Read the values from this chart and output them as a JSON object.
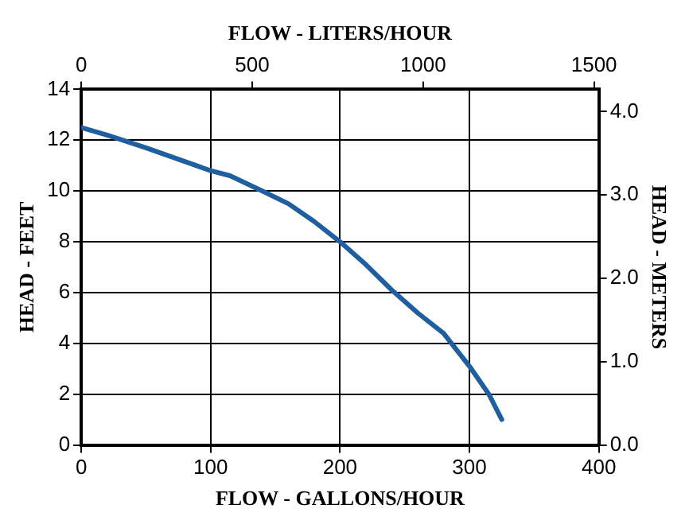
{
  "chart_data": {
    "type": "line",
    "xlabel": "FLOW - GALLONS/HOUR",
    "ylabel": "HEAD - FEET",
    "x2label": "FLOW - LITERS/HOUR",
    "y2label": "HEAD - METERS",
    "x": [
      0,
      20,
      50,
      100,
      115,
      140,
      160,
      180,
      200,
      220,
      240,
      260,
      280,
      300,
      315,
      325
    ],
    "series": [
      {
        "color": "#1f5fa0",
        "values": [
          12.5,
          12.2,
          11.7,
          10.8,
          10.6,
          10,
          9.5,
          8.8,
          8,
          7.1,
          6.1,
          5.2,
          4.4,
          3.1,
          2,
          1
        ]
      }
    ],
    "xlim": [
      0,
      400
    ],
    "xticks": [
      0,
      100,
      200,
      300,
      400
    ],
    "ylim": [
      0,
      14
    ],
    "yticks": [
      0,
      2,
      4,
      6,
      8,
      10,
      12,
      14
    ],
    "x2lim": [
      0,
      1514
    ],
    "x2ticks": [
      0,
      500,
      1000,
      1500
    ],
    "y2lim": [
      0,
      4.267
    ],
    "y2ticks": [
      {
        "value": 0,
        "label": "0.0"
      },
      {
        "value": 1,
        "label": "1.0"
      },
      {
        "value": 2,
        "label": "2.0"
      },
      {
        "value": 3,
        "label": "3.0"
      },
      {
        "value": 4,
        "label": "4.0"
      }
    ],
    "grid": true,
    "legend": false,
    "marker": "none",
    "line_style": "solid"
  }
}
